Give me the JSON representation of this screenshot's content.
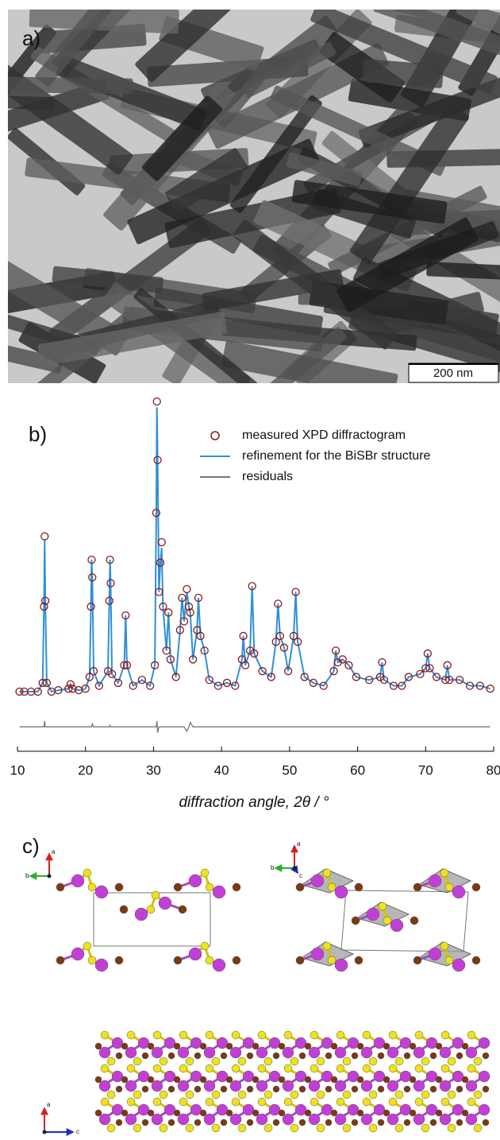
{
  "panel_labels": [
    "a)",
    "b)",
    "c)"
  ],
  "scale_bar": "200 nm",
  "chart_data": {
    "type": "line",
    "xlabel": "diffraction angle, 2θ / °",
    "xlim": [
      10,
      80
    ],
    "xticks": [
      10,
      20,
      30,
      40,
      50,
      60,
      70,
      80
    ],
    "ylim": [
      -15,
      100
    ],
    "x": [
      10.3,
      11,
      12,
      13,
      13.7,
      13.9,
      14,
      14.1,
      14.3,
      15,
      16,
      17.5,
      17.8,
      18.1,
      19,
      20,
      20.6,
      20.8,
      20.9,
      21,
      21.2,
      22,
      23.3,
      23.5,
      23.6,
      23.7,
      23.9,
      24.8,
      25.7,
      25.9,
      26.1,
      27,
      28.3,
      29.5,
      30.2,
      30.4,
      30.5,
      30.6,
      30.8,
      31,
      31.2,
      31.4,
      31.9,
      32.2,
      32.5,
      33.3,
      33.9,
      34.2,
      34.5,
      34.9,
      35.2,
      35.4,
      35.8,
      36.4,
      36.6,
      36.9,
      37.5,
      38.2,
      39.5,
      40.8,
      42,
      43,
      43.2,
      43.5,
      44.2,
      44.5,
      44.8,
      46,
      47.3,
      48,
      48.3,
      48.6,
      49.2,
      49.8,
      50.6,
      50.9,
      51.2,
      52.2,
      53.5,
      55,
      56.5,
      56.8,
      57.1,
      57.8,
      58.7,
      59.8,
      61.7,
      63.3,
      63.6,
      63.9,
      65.3,
      66.5,
      67.5,
      69.2,
      70,
      70.3,
      70.6,
      71.6,
      72.9,
      73.2,
      73.5,
      75,
      76.5,
      78,
      79.5
    ],
    "series": [
      {
        "name": "measured XPD diffractogram",
        "color": "#8b1a1a",
        "marker": "circle",
        "values": [
          1,
          1,
          1,
          1,
          4,
          30,
          54,
          32,
          4,
          1,
          1.5,
          2,
          3.5,
          2,
          1.5,
          2,
          6,
          30,
          46,
          40,
          8,
          3,
          8,
          32,
          46,
          38,
          7,
          4,
          10,
          27,
          10,
          3,
          5,
          3,
          10,
          62,
          100,
          80,
          35,
          45,
          52,
          30,
          15,
          28,
          12,
          6,
          22,
          33,
          25,
          36,
          30,
          28,
          12,
          22,
          33,
          20,
          15,
          5,
          3,
          4,
          3,
          12,
          20,
          10,
          15,
          37,
          14,
          8,
          6,
          18,
          31,
          20,
          16,
          8,
          20,
          35,
          18,
          6,
          4,
          3,
          8,
          15,
          11,
          12,
          10,
          6,
          5,
          6,
          11,
          5,
          3,
          3,
          6,
          7,
          9,
          14,
          9,
          6,
          5,
          10,
          5,
          5,
          3,
          3,
          2
        ]
      },
      {
        "name": "refinement for the BiSBr structure",
        "color": "#2f8fd8",
        "marker": "line",
        "values": [
          1,
          1,
          1,
          1,
          4,
          30,
          53,
          32,
          4,
          1,
          1.5,
          2,
          3.5,
          2,
          1.5,
          2,
          6,
          30,
          46,
          40,
          8,
          3,
          8,
          32,
          46,
          38,
          7,
          4,
          10,
          27,
          10,
          3,
          5,
          3,
          10,
          62,
          98,
          80,
          35,
          45,
          50,
          30,
          15,
          28,
          12,
          6,
          22,
          33,
          25,
          35,
          30,
          28,
          12,
          22,
          33,
          20,
          15,
          5,
          3,
          4,
          3,
          12,
          20,
          10,
          15,
          37,
          14,
          8,
          6,
          18,
          31,
          20,
          16,
          8,
          20,
          35,
          18,
          6,
          4,
          3,
          8,
          15,
          11,
          12,
          10,
          6,
          5,
          6,
          11,
          5,
          3,
          3,
          6,
          7,
          9,
          14,
          9,
          6,
          5,
          10,
          5,
          5,
          3,
          3,
          2
        ]
      },
      {
        "name": "residuals",
        "color": "#777777",
        "marker": "line",
        "values": [
          -11,
          -11,
          -11,
          -11,
          -11,
          -11,
          -9,
          -11,
          -11,
          -11,
          -11,
          -11,
          -11,
          -11,
          -11,
          -11,
          -11,
          -11,
          -11,
          -10,
          -11,
          -11,
          -11,
          -11,
          -10.5,
          -11,
          -11,
          -11,
          -11,
          -11,
          -11,
          -11,
          -11,
          -11,
          -11,
          -11,
          -9,
          -13,
          -11,
          -11,
          -11,
          -11,
          -11,
          -11,
          -11,
          -11,
          -11,
          -11,
          -11,
          -12.5,
          -11,
          -9.5,
          -11,
          -11,
          -11,
          -11,
          -11,
          -11,
          -11,
          -11,
          -11,
          -11,
          -11,
          -11,
          -11,
          -11,
          -11,
          -11,
          -11,
          -11,
          -11,
          -11,
          -11,
          -11,
          -11,
          -11,
          -11,
          -11,
          -11,
          -11,
          -11,
          -11,
          -11,
          -11,
          -11,
          -11,
          -11,
          -11,
          -11,
          -11,
          -11,
          -11,
          -11,
          -11,
          -11,
          -11,
          -11,
          -11,
          -11,
          -11,
          -11,
          -11,
          -11,
          -11,
          -11
        ]
      }
    ]
  },
  "structure_axes": {
    "left": [
      "a",
      "b"
    ],
    "right": [
      "a",
      "b",
      "c"
    ],
    "bottom": [
      "a",
      "c"
    ]
  }
}
